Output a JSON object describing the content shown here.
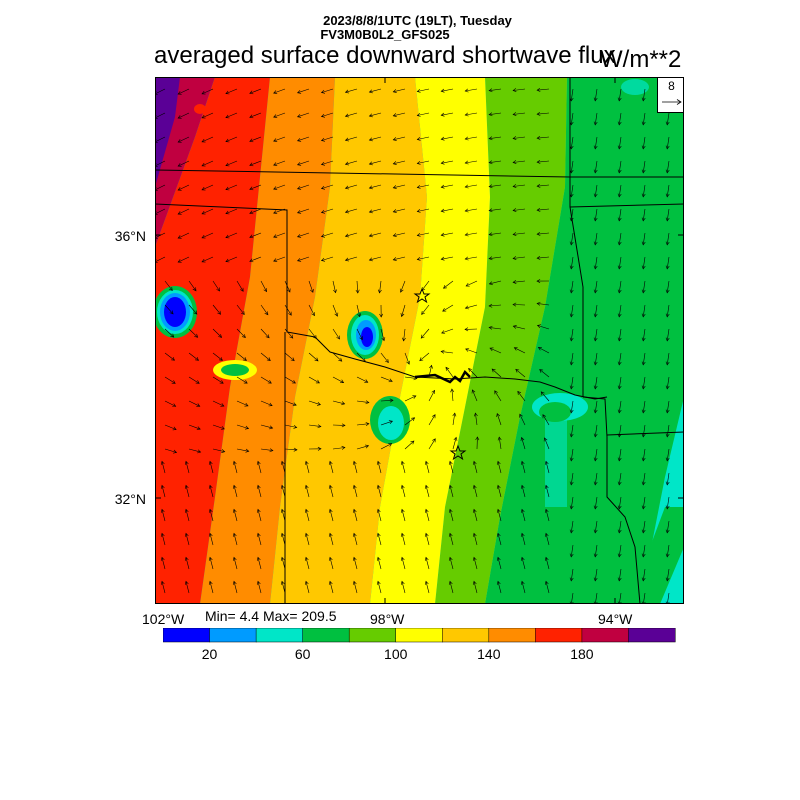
{
  "header": {
    "date_line": "2023/8/8/1UTC (19LT), Tuesday",
    "model_line": "FV3M0B0L2_GFS025",
    "title": "averaged surface downward shortwave flux",
    "units": "W/m**2"
  },
  "vector_key": {
    "value": "8"
  },
  "axes": {
    "lat_labels": [
      "36°N",
      "32°N"
    ],
    "lon_labels": [
      "102°W",
      "98°W",
      "94°W"
    ]
  },
  "stats": {
    "text": "Min= 4.4 Max= 209.5"
  },
  "colorbar": {
    "colors": [
      "#0000ff",
      "#009bff",
      "#00e6c8",
      "#00c040",
      "#66cc00",
      "#ffff00",
      "#ffc800",
      "#ff8c00",
      "#ff2200",
      "#c00040",
      "#5a0096"
    ],
    "labels": [
      "20",
      "60",
      "100",
      "140",
      "180"
    ]
  },
  "map_colors": {
    "c200": "#5a0096",
    "c180": "#c00040",
    "c160": "#ff2200",
    "c140": "#ff8c00",
    "c120": "#ffc800",
    "c100": "#ffff00",
    "c80": "#66cc00",
    "c60": "#00c040",
    "c40": "#00e6c8",
    "c20": "#009bff",
    "c0": "#0000ff"
  }
}
